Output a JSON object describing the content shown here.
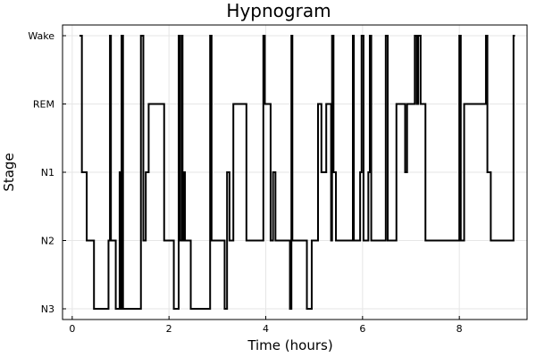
{
  "chart_data": {
    "type": "line",
    "title": "Hypnogram",
    "xlabel": "Time (hours)",
    "ylabel": "Stage",
    "categories_y": [
      "N3",
      "N2",
      "N1",
      "REM",
      "Wake"
    ],
    "xlim": [
      -0.2,
      9.4
    ],
    "xticks": [
      0,
      2,
      4,
      6,
      8
    ],
    "grid": true,
    "legend": "none",
    "color": "#000000",
    "series": [
      {
        "step": true,
        "points": [
          [
            0.15,
            "Wake"
          ],
          [
            0.2,
            "N1"
          ],
          [
            0.3,
            "N2"
          ],
          [
            0.45,
            "N3"
          ],
          [
            0.75,
            "N2"
          ],
          [
            0.78,
            "Wake"
          ],
          [
            0.8,
            "N2"
          ],
          [
            0.9,
            "N3"
          ],
          [
            0.98,
            "N1"
          ],
          [
            1.0,
            "N3"
          ],
          [
            1.02,
            "Wake"
          ],
          [
            1.05,
            "N3"
          ],
          [
            1.42,
            "Wake"
          ],
          [
            1.47,
            "N2"
          ],
          [
            1.52,
            "N1"
          ],
          [
            1.58,
            "REM"
          ],
          [
            1.9,
            "N2"
          ],
          [
            2.1,
            "N3"
          ],
          [
            2.2,
            "Wake"
          ],
          [
            2.23,
            "N2"
          ],
          [
            2.27,
            "Wake"
          ],
          [
            2.28,
            "N2"
          ],
          [
            2.3,
            "N1"
          ],
          [
            2.33,
            "N2"
          ],
          [
            2.45,
            "N3"
          ],
          [
            2.85,
            "Wake"
          ],
          [
            2.88,
            "N2"
          ],
          [
            3.15,
            "N3"
          ],
          [
            3.2,
            "N1"
          ],
          [
            3.25,
            "N2"
          ],
          [
            3.33,
            "REM"
          ],
          [
            3.6,
            "N2"
          ],
          [
            3.65,
            "N2"
          ],
          [
            3.95,
            "Wake"
          ],
          [
            3.98,
            "REM"
          ],
          [
            4.1,
            "N2"
          ],
          [
            4.15,
            "N1"
          ],
          [
            4.2,
            "N2"
          ],
          [
            4.5,
            "N3"
          ],
          [
            4.53,
            "Wake"
          ],
          [
            4.55,
            "N2"
          ],
          [
            4.85,
            "N3"
          ],
          [
            4.95,
            "N2"
          ],
          [
            5.08,
            "REM"
          ],
          [
            5.15,
            "N1"
          ],
          [
            5.25,
            "REM"
          ],
          [
            5.35,
            "N2"
          ],
          [
            5.37,
            "Wake"
          ],
          [
            5.4,
            "N1"
          ],
          [
            5.45,
            "N2"
          ],
          [
            5.8,
            "Wake"
          ],
          [
            5.82,
            "N2"
          ],
          [
            5.95,
            "N1"
          ],
          [
            5.98,
            "Wake"
          ],
          [
            6.02,
            "N2"
          ],
          [
            6.12,
            "N1"
          ],
          [
            6.15,
            "Wake"
          ],
          [
            6.18,
            "N2"
          ],
          [
            6.48,
            "Wake"
          ],
          [
            6.52,
            "N2"
          ],
          [
            6.7,
            "REM"
          ],
          [
            6.88,
            "N1"
          ],
          [
            6.92,
            "REM"
          ],
          [
            7.08,
            "Wake"
          ],
          [
            7.12,
            "REM"
          ],
          [
            7.15,
            "Wake"
          ],
          [
            7.2,
            "REM"
          ],
          [
            7.3,
            "N2"
          ],
          [
            8.0,
            "Wake"
          ],
          [
            8.03,
            "N2"
          ],
          [
            8.1,
            "REM"
          ],
          [
            8.55,
            "Wake"
          ],
          [
            8.58,
            "N1"
          ],
          [
            8.65,
            "N2"
          ],
          [
            9.12,
            "Wake"
          ],
          [
            9.15,
            "Wake"
          ]
        ]
      }
    ]
  }
}
